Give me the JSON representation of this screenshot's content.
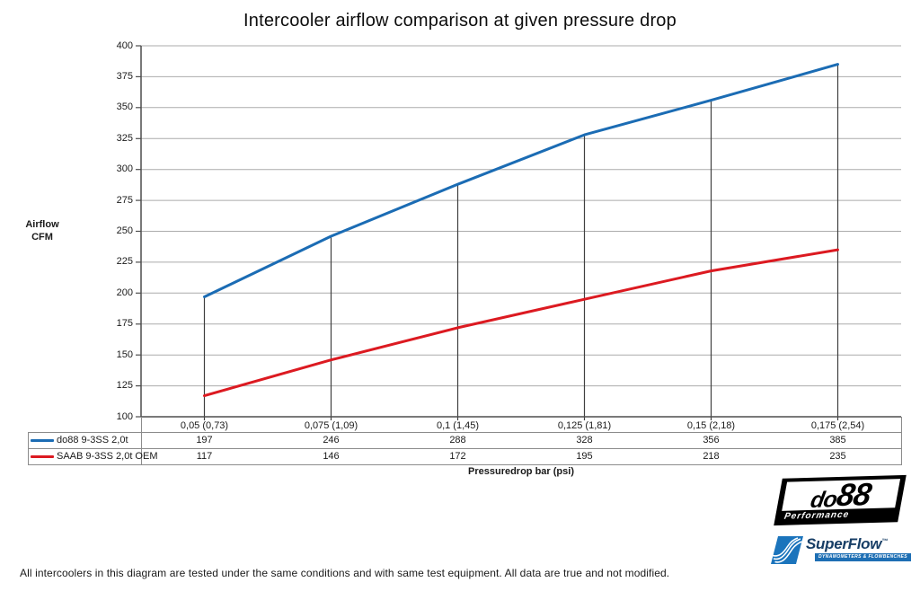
{
  "chart_data": {
    "type": "line",
    "title": "Intercooler airflow comparison at given pressure drop",
    "ylabel": "Airflow\nCFM",
    "xlabel": "Pressuredrop bar (psi)",
    "ylim": [
      100,
      400
    ],
    "ytick_step": 25,
    "grid": true,
    "drop_lines_from_series": 0,
    "legend_position": "table-left",
    "categories": [
      "0,05 (0,73)",
      "0,075 (1,09)",
      "0,1 (1,45)",
      "0,125 (1,81)",
      "0,15 (2,18)",
      "0,175 (2,54)"
    ],
    "series": [
      {
        "name": "do88 9-3SS 2,0t",
        "color": "#1B6CB4",
        "values": [
          197,
          246,
          288,
          328,
          356,
          385
        ]
      },
      {
        "name": "SAAB 9-3SS 2,0t OEM",
        "color": "#DC1A21",
        "values": [
          117,
          146,
          172,
          195,
          218,
          235
        ]
      }
    ]
  },
  "colors": {
    "series_blue": "#1B6CB4",
    "series_red": "#DC1A21",
    "gridline": "#ABABAB",
    "axis": "#4D4D4D",
    "drop_line": "#3F3F3F",
    "table_border": "#8C8C8C"
  },
  "footer": {
    "note": "All intercoolers in this diagram are tested under the same conditions and with same test equipment. All data are true and not modified."
  },
  "logos": {
    "do88": {
      "name_small": "do",
      "name_big": "88",
      "subtitle": "Performance"
    },
    "superflow": {
      "name": "SuperFlow",
      "tm": "™",
      "subtitle": "DYNAMOMETERS & FLOWBENCHES"
    }
  }
}
